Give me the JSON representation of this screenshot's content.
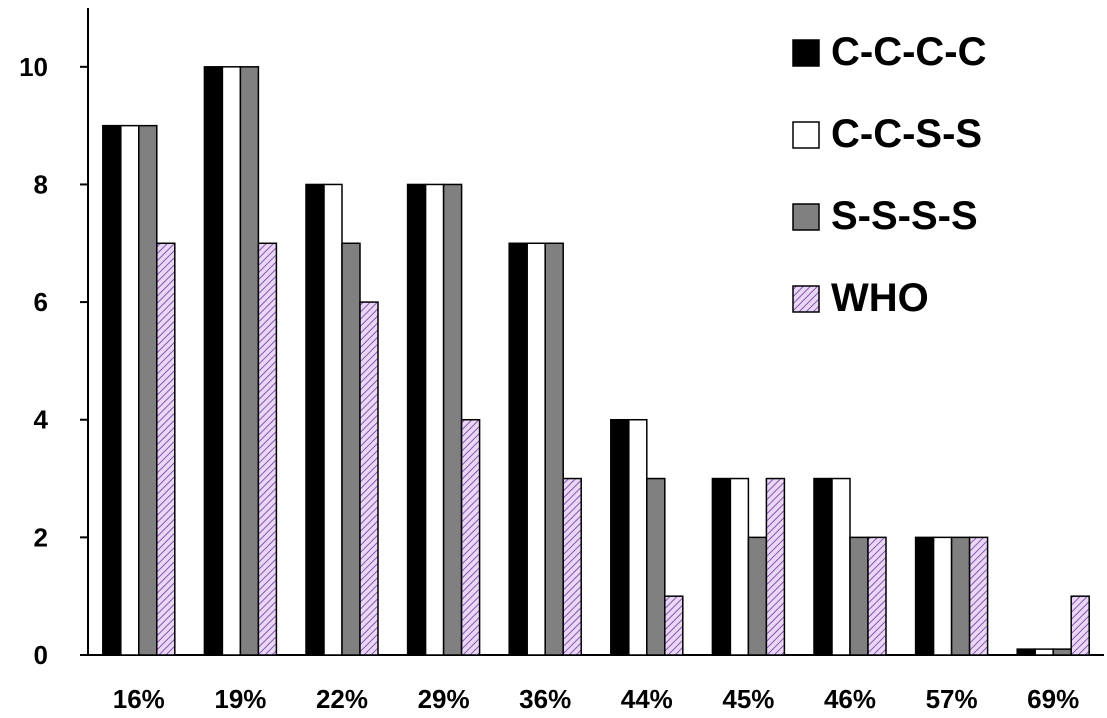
{
  "chart_data": {
    "type": "bar",
    "title": "",
    "xlabel": "",
    "ylabel": "",
    "categories": [
      "16%",
      "19%",
      "22%",
      "29%",
      "36%",
      "44%",
      "45%",
      "46%",
      "57%",
      "69%"
    ],
    "series": [
      {
        "name": "C-C-C-C",
        "color": "#000000",
        "values": [
          9,
          10,
          8,
          8,
          7,
          4,
          3,
          3,
          2,
          0.1
        ]
      },
      {
        "name": "C-C-S-S",
        "color": "#ffffff",
        "values": [
          9,
          10,
          8,
          8,
          7,
          4,
          3,
          3,
          2,
          0.1
        ]
      },
      {
        "name": "S-S-S-S",
        "color": "#808080",
        "values": [
          9,
          10,
          7,
          8,
          7,
          3,
          2,
          2,
          2,
          0.1
        ]
      },
      {
        "name": "WHO",
        "color": "#c9a6e0",
        "pattern": "diagonal-hatch",
        "values": [
          7,
          7,
          6,
          4,
          3,
          1,
          3,
          2,
          2,
          1
        ]
      }
    ],
    "ylim": [
      0,
      11
    ],
    "yticks": [
      0,
      2,
      4,
      6,
      8,
      10
    ],
    "grid": false,
    "legend_position": "top-right"
  }
}
